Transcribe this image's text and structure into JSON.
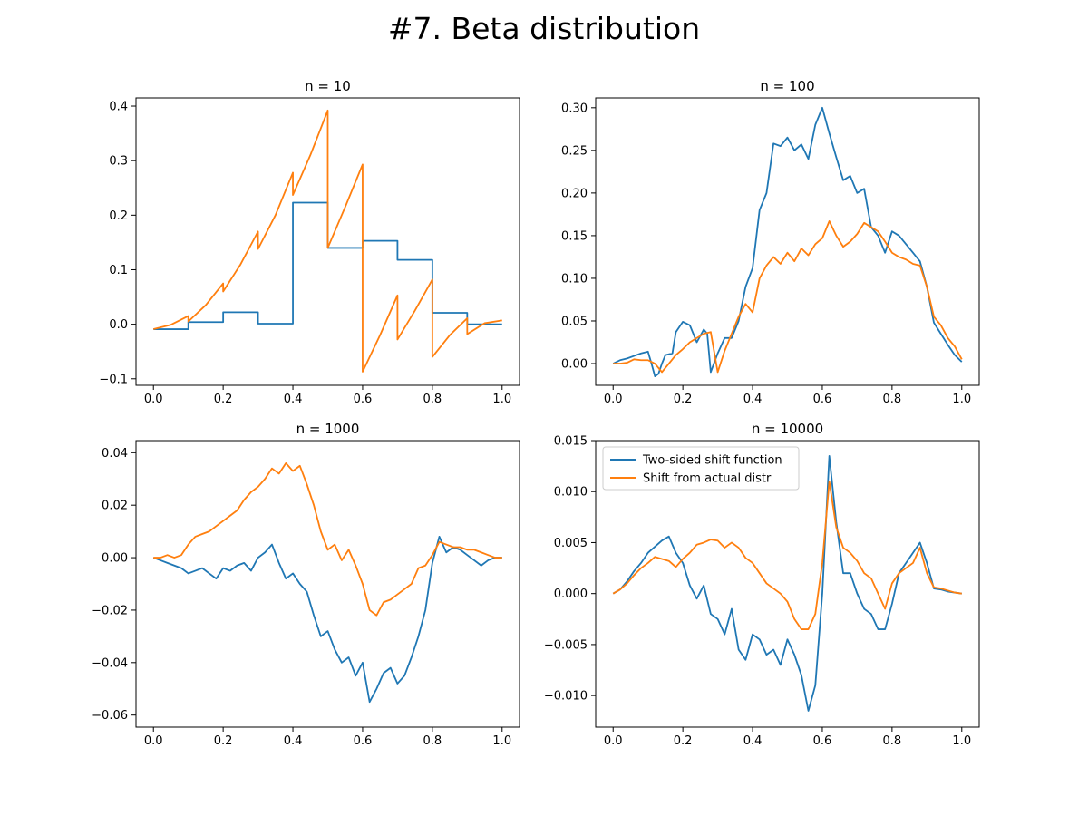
{
  "figure": {
    "title": "#7. Beta distribution"
  },
  "colors": {
    "two_sided": "#1f77b4",
    "actual": "#ff7f0e"
  },
  "chart_data": [
    {
      "type": "line",
      "title": "n = 10",
      "xlim": [
        -0.05,
        1.05
      ],
      "ylim": [
        -0.112,
        0.415
      ],
      "xticks": [
        0.0,
        0.2,
        0.4,
        0.6,
        0.8,
        1.0
      ],
      "xtick_labels": [
        "0.0",
        "0.2",
        "0.4",
        "0.6",
        "0.8",
        "1.0"
      ],
      "yticks": [
        -0.1,
        0.0,
        0.1,
        0.2,
        0.3,
        0.4
      ],
      "ytick_labels": [
        "−0.1",
        "0.0",
        "0.1",
        "0.2",
        "0.3",
        "0.4"
      ],
      "legend": null,
      "series": [
        {
          "key": "two_sided",
          "style": "step",
          "x": [
            0.0,
            0.1,
            0.1,
            0.2,
            0.2,
            0.3,
            0.3,
            0.4,
            0.4,
            0.5,
            0.5,
            0.6,
            0.6,
            0.7,
            0.7,
            0.8,
            0.8,
            0.9,
            0.9,
            1.0
          ],
          "y": [
            -0.009,
            -0.009,
            0.004,
            0.004,
            0.022,
            0.022,
            0.001,
            0.001,
            0.223,
            0.223,
            0.14,
            0.14,
            0.153,
            0.153,
            0.118,
            0.118,
            0.021,
            0.021,
            0.0,
            0.0
          ]
        },
        {
          "key": "actual",
          "style": "line",
          "x": [
            0.0,
            0.05,
            0.1,
            0.1,
            0.15,
            0.2,
            0.2,
            0.25,
            0.3,
            0.3,
            0.35,
            0.4,
            0.4,
            0.45,
            0.5,
            0.5,
            0.55,
            0.6,
            0.6,
            0.65,
            0.7,
            0.7,
            0.75,
            0.8,
            0.8,
            0.85,
            0.9,
            0.9,
            0.95,
            1.0
          ],
          "y": [
            -0.009,
            -0.001,
            0.015,
            0.005,
            0.035,
            0.075,
            0.06,
            0.11,
            0.17,
            0.138,
            0.2,
            0.278,
            0.237,
            0.31,
            0.392,
            0.14,
            0.215,
            0.293,
            -0.087,
            -0.02,
            0.053,
            -0.028,
            0.025,
            0.082,
            -0.06,
            -0.02,
            0.011,
            -0.018,
            0.002,
            0.007
          ]
        }
      ]
    },
    {
      "type": "line",
      "title": "n = 100",
      "xlim": [
        -0.05,
        1.05
      ],
      "ylim": [
        -0.0255,
        0.3115
      ],
      "xticks": [
        0.0,
        0.2,
        0.4,
        0.6,
        0.8,
        1.0
      ],
      "xtick_labels": [
        "0.0",
        "0.2",
        "0.4",
        "0.6",
        "0.8",
        "1.0"
      ],
      "yticks": [
        0.0,
        0.05,
        0.1,
        0.15,
        0.2,
        0.25,
        0.3
      ],
      "ytick_labels": [
        "0.00",
        "0.05",
        "0.10",
        "0.15",
        "0.20",
        "0.25",
        "0.30"
      ],
      "legend": null,
      "series": [
        {
          "key": "two_sided",
          "style": "line",
          "x": [
            0.0,
            0.02,
            0.04,
            0.06,
            0.08,
            0.1,
            0.11,
            0.12,
            0.13,
            0.14,
            0.15,
            0.17,
            0.18,
            0.2,
            0.22,
            0.24,
            0.26,
            0.27,
            0.28,
            0.3,
            0.32,
            0.34,
            0.36,
            0.38,
            0.4,
            0.42,
            0.44,
            0.46,
            0.48,
            0.5,
            0.52,
            0.54,
            0.56,
            0.58,
            0.6,
            0.62,
            0.64,
            0.66,
            0.68,
            0.7,
            0.72,
            0.74,
            0.76,
            0.78,
            0.8,
            0.82,
            0.84,
            0.86,
            0.88,
            0.9,
            0.92,
            0.94,
            0.96,
            0.98,
            1.0
          ],
          "y": [
            0.0,
            0.004,
            0.006,
            0.009,
            0.012,
            0.014,
            0.0,
            -0.015,
            -0.012,
            0.0,
            0.01,
            0.012,
            0.037,
            0.049,
            0.045,
            0.025,
            0.04,
            0.035,
            -0.01,
            0.012,
            0.03,
            0.03,
            0.05,
            0.09,
            0.112,
            0.18,
            0.2,
            0.258,
            0.255,
            0.265,
            0.25,
            0.257,
            0.24,
            0.28,
            0.3,
            0.27,
            0.242,
            0.215,
            0.22,
            0.2,
            0.205,
            0.16,
            0.15,
            0.13,
            0.155,
            0.15,
            0.14,
            0.13,
            0.12,
            0.09,
            0.048,
            0.035,
            0.022,
            0.01,
            0.002
          ]
        },
        {
          "key": "actual",
          "style": "line",
          "x": [
            0.0,
            0.02,
            0.04,
            0.06,
            0.08,
            0.1,
            0.12,
            0.14,
            0.16,
            0.18,
            0.2,
            0.22,
            0.24,
            0.26,
            0.28,
            0.3,
            0.32,
            0.34,
            0.36,
            0.38,
            0.4,
            0.42,
            0.44,
            0.46,
            0.48,
            0.5,
            0.52,
            0.54,
            0.56,
            0.58,
            0.6,
            0.62,
            0.64,
            0.66,
            0.68,
            0.7,
            0.72,
            0.74,
            0.76,
            0.78,
            0.8,
            0.82,
            0.84,
            0.86,
            0.88,
            0.9,
            0.92,
            0.94,
            0.96,
            0.98,
            1.0
          ],
          "y": [
            0.0,
            0.0,
            0.001,
            0.005,
            0.004,
            0.004,
            0.0,
            -0.01,
            0.0,
            0.01,
            0.017,
            0.025,
            0.03,
            0.035,
            0.037,
            -0.01,
            0.015,
            0.035,
            0.055,
            0.07,
            0.06,
            0.1,
            0.115,
            0.125,
            0.117,
            0.13,
            0.12,
            0.135,
            0.127,
            0.14,
            0.147,
            0.167,
            0.15,
            0.137,
            0.143,
            0.152,
            0.165,
            0.16,
            0.155,
            0.143,
            0.13,
            0.125,
            0.122,
            0.117,
            0.115,
            0.09,
            0.055,
            0.045,
            0.03,
            0.02,
            0.005
          ]
        }
      ]
    },
    {
      "type": "line",
      "title": "n = 1000",
      "xlim": [
        -0.05,
        1.05
      ],
      "ylim": [
        -0.0646,
        0.0446
      ],
      "xticks": [
        0.0,
        0.2,
        0.4,
        0.6,
        0.8,
        1.0
      ],
      "xtick_labels": [
        "0.0",
        "0.2",
        "0.4",
        "0.6",
        "0.8",
        "1.0"
      ],
      "yticks": [
        -0.06,
        -0.04,
        -0.02,
        0.0,
        0.02,
        0.04
      ],
      "ytick_labels": [
        "−0.06",
        "−0.04",
        "−0.02",
        "0.00",
        "0.02",
        "0.04"
      ],
      "legend": null,
      "series": [
        {
          "key": "two_sided",
          "style": "line",
          "x": [
            0.0,
            0.02,
            0.04,
            0.06,
            0.08,
            0.1,
            0.12,
            0.14,
            0.16,
            0.18,
            0.2,
            0.22,
            0.24,
            0.26,
            0.28,
            0.3,
            0.32,
            0.34,
            0.36,
            0.38,
            0.4,
            0.42,
            0.44,
            0.46,
            0.48,
            0.5,
            0.52,
            0.54,
            0.56,
            0.58,
            0.6,
            0.62,
            0.64,
            0.66,
            0.68,
            0.7,
            0.72,
            0.74,
            0.76,
            0.78,
            0.8,
            0.82,
            0.84,
            0.86,
            0.88,
            0.9,
            0.92,
            0.94,
            0.96,
            0.98,
            1.0
          ],
          "y": [
            0.0,
            -0.001,
            -0.002,
            -0.003,
            -0.004,
            -0.006,
            -0.005,
            -0.004,
            -0.006,
            -0.008,
            -0.004,
            -0.005,
            -0.003,
            -0.002,
            -0.005,
            0.0,
            0.002,
            0.005,
            -0.002,
            -0.008,
            -0.006,
            -0.01,
            -0.013,
            -0.022,
            -0.03,
            -0.028,
            -0.035,
            -0.04,
            -0.038,
            -0.045,
            -0.04,
            -0.055,
            -0.05,
            -0.044,
            -0.042,
            -0.048,
            -0.045,
            -0.038,
            -0.03,
            -0.02,
            -0.002,
            0.008,
            0.002,
            0.004,
            0.003,
            0.001,
            -0.001,
            -0.003,
            -0.001,
            0.0,
            0.0
          ]
        },
        {
          "key": "actual",
          "style": "line",
          "x": [
            0.0,
            0.02,
            0.04,
            0.06,
            0.08,
            0.1,
            0.12,
            0.14,
            0.16,
            0.18,
            0.2,
            0.22,
            0.24,
            0.26,
            0.28,
            0.3,
            0.32,
            0.34,
            0.36,
            0.38,
            0.4,
            0.42,
            0.44,
            0.46,
            0.48,
            0.5,
            0.52,
            0.54,
            0.56,
            0.58,
            0.6,
            0.62,
            0.64,
            0.66,
            0.68,
            0.7,
            0.72,
            0.74,
            0.76,
            0.78,
            0.8,
            0.82,
            0.84,
            0.86,
            0.88,
            0.9,
            0.92,
            0.94,
            0.96,
            0.98,
            1.0
          ],
          "y": [
            0.0,
            0.0,
            0.001,
            0.0,
            0.001,
            0.005,
            0.008,
            0.009,
            0.01,
            0.012,
            0.014,
            0.016,
            0.018,
            0.022,
            0.025,
            0.027,
            0.03,
            0.034,
            0.032,
            0.036,
            0.033,
            0.035,
            0.028,
            0.02,
            0.01,
            0.003,
            0.005,
            -0.001,
            0.003,
            -0.003,
            -0.01,
            -0.02,
            -0.022,
            -0.017,
            -0.016,
            -0.014,
            -0.012,
            -0.01,
            -0.004,
            -0.003,
            0.001,
            0.006,
            0.005,
            0.004,
            0.004,
            0.003,
            0.003,
            0.002,
            0.001,
            0.0,
            0.0
          ]
        }
      ]
    },
    {
      "type": "line",
      "title": "n = 10000",
      "xlim": [
        -0.05,
        1.05
      ],
      "ylim": [
        -0.0131,
        0.015
      ],
      "xticks": [
        0.0,
        0.2,
        0.4,
        0.6,
        0.8,
        1.0
      ],
      "xtick_labels": [
        "0.0",
        "0.2",
        "0.4",
        "0.6",
        "0.8",
        "1.0"
      ],
      "yticks": [
        -0.01,
        -0.005,
        0.0,
        0.005,
        0.01,
        0.015
      ],
      "ytick_labels": [
        "−0.010",
        "−0.005",
        "0.000",
        "0.005",
        "0.010",
        "0.015"
      ],
      "legend": {
        "position": "upper-left",
        "entries": [
          "Two-sided shift function",
          "Shift from actual distr"
        ]
      },
      "series": [
        {
          "key": "two_sided",
          "style": "line",
          "x": [
            0.0,
            0.02,
            0.04,
            0.06,
            0.08,
            0.1,
            0.12,
            0.14,
            0.16,
            0.18,
            0.2,
            0.22,
            0.24,
            0.26,
            0.28,
            0.3,
            0.32,
            0.34,
            0.36,
            0.38,
            0.4,
            0.42,
            0.44,
            0.46,
            0.48,
            0.5,
            0.52,
            0.54,
            0.56,
            0.58,
            0.6,
            0.62,
            0.64,
            0.66,
            0.68,
            0.7,
            0.72,
            0.74,
            0.76,
            0.78,
            0.8,
            0.82,
            0.84,
            0.86,
            0.88,
            0.9,
            0.92,
            0.94,
            0.96,
            0.98,
            1.0
          ],
          "y": [
            0.0,
            0.0004,
            0.0012,
            0.0022,
            0.003,
            0.004,
            0.0046,
            0.0052,
            0.0056,
            0.004,
            0.003,
            0.0008,
            -0.0005,
            0.0008,
            -0.002,
            -0.0025,
            -0.004,
            -0.0015,
            -0.0055,
            -0.0065,
            -0.004,
            -0.0045,
            -0.006,
            -0.0055,
            -0.007,
            -0.0045,
            -0.006,
            -0.008,
            -0.0115,
            -0.009,
            0.0,
            0.0135,
            0.007,
            0.002,
            0.002,
            0.0,
            -0.0015,
            -0.002,
            -0.0035,
            -0.0035,
            -0.001,
            0.002,
            0.003,
            0.004,
            0.005,
            0.003,
            0.0005,
            0.0004,
            0.0002,
            0.0001,
            0.0
          ]
        },
        {
          "key": "actual",
          "style": "line",
          "x": [
            0.0,
            0.02,
            0.04,
            0.06,
            0.08,
            0.1,
            0.12,
            0.14,
            0.16,
            0.18,
            0.2,
            0.22,
            0.24,
            0.26,
            0.28,
            0.3,
            0.32,
            0.34,
            0.36,
            0.38,
            0.4,
            0.42,
            0.44,
            0.46,
            0.48,
            0.5,
            0.52,
            0.54,
            0.56,
            0.58,
            0.6,
            0.62,
            0.64,
            0.66,
            0.68,
            0.7,
            0.72,
            0.74,
            0.76,
            0.78,
            0.8,
            0.82,
            0.84,
            0.86,
            0.88,
            0.9,
            0.92,
            0.94,
            0.96,
            0.98,
            1.0
          ],
          "y": [
            0.0,
            0.0004,
            0.001,
            0.0018,
            0.0025,
            0.003,
            0.0036,
            0.0034,
            0.0032,
            0.0026,
            0.0034,
            0.004,
            0.0048,
            0.005,
            0.0053,
            0.0052,
            0.0045,
            0.005,
            0.0045,
            0.0035,
            0.003,
            0.002,
            0.001,
            0.0005,
            0.0,
            -0.0008,
            -0.0025,
            -0.0035,
            -0.0035,
            -0.002,
            0.003,
            0.011,
            0.0065,
            0.0045,
            0.004,
            0.0032,
            0.002,
            0.0015,
            0.0,
            -0.0015,
            0.001,
            0.002,
            0.0025,
            0.003,
            0.0045,
            0.002,
            0.0006,
            0.0005,
            0.0003,
            0.0001,
            0.0
          ]
        }
      ]
    }
  ]
}
